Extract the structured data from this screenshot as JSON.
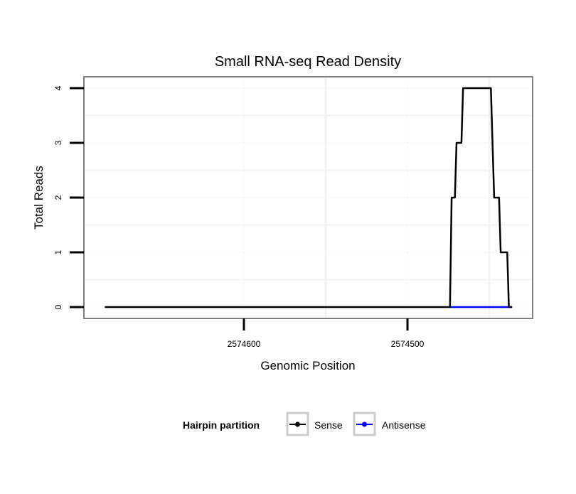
{
  "chart_data": {
    "type": "line",
    "title": "Small RNA-seq Read Density",
    "xlabel": "Genomic Position",
    "ylabel": "Total Reads",
    "xlim": [
      2574700,
      2574425
    ],
    "x_reversed": true,
    "ylim": [
      -0.2,
      4.2
    ],
    "x_ticks": [
      2574600,
      2574500
    ],
    "x_tick_labels": [
      "2574600",
      "2574500"
    ],
    "y_ticks": [
      0,
      1,
      2,
      3,
      4
    ],
    "y_tick_labels": [
      "0",
      "1",
      "2",
      "3",
      "4"
    ],
    "grid": true,
    "legend": {
      "title": "Hairpin partition",
      "placement": "bottom",
      "entries": [
        "Sense",
        "Antisense"
      ]
    },
    "series": [
      {
        "name": "Sense",
        "color": "#000000",
        "x": [
          2574685,
          2574474,
          2574473,
          2574471,
          2574470,
          2574467,
          2574466,
          2574449,
          2574447,
          2574444,
          2574443,
          2574439,
          2574438,
          2574436
        ],
        "y": [
          0,
          0,
          2,
          2,
          3,
          3,
          4,
          4,
          2,
          2,
          1,
          1,
          0,
          0
        ]
      },
      {
        "name": "Antisense",
        "color": "#0000ff",
        "x": [
          2574474,
          2574436
        ],
        "y": [
          0,
          0
        ]
      }
    ]
  }
}
